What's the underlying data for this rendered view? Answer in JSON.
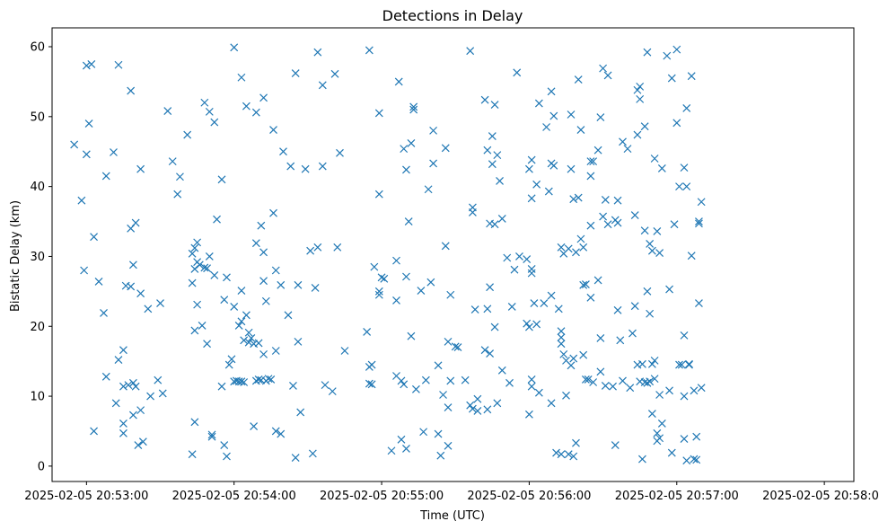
{
  "chart_data": {
    "type": "scatter",
    "title": "Detections in Delay",
    "xlabel": "Time (UTC)",
    "ylabel": "Bistatic Delay (km)",
    "marker": "x",
    "color": "#1f77b4",
    "xlim_seconds": [
      -14,
      312
    ],
    "ylim": [
      -2.2,
      62.7
    ],
    "x_ticks": [
      {
        "t": 0,
        "label": "2025-02-05 20:53:00"
      },
      {
        "t": 60,
        "label": "2025-02-05 20:54:00"
      },
      {
        "t": 120,
        "label": "2025-02-05 20:55:00"
      },
      {
        "t": 180,
        "label": "2025-02-05 20:56:00"
      },
      {
        "t": 240,
        "label": "2025-02-05 20:57:00"
      },
      {
        "t": 300,
        "label": "2025-02-05 20:58:00"
      }
    ],
    "y_ticks": [
      0,
      10,
      20,
      30,
      40,
      50,
      60
    ],
    "points_note": "x = seconds after 2025-02-05 20:53:00 UTC",
    "points": [
      [
        -5,
        46
      ],
      [
        -2,
        38
      ],
      [
        -1,
        28
      ],
      [
        0,
        57.3
      ],
      [
        0,
        44.6
      ],
      [
        1,
        49
      ],
      [
        2,
        57.5
      ],
      [
        3,
        32.8
      ],
      [
        3,
        5
      ],
      [
        5,
        26.4
      ],
      [
        7,
        21.9
      ],
      [
        8,
        12.8
      ],
      [
        8,
        41.5
      ],
      [
        11,
        44.9
      ],
      [
        12,
        9
      ],
      [
        13,
        57.4
      ],
      [
        13,
        15.2
      ],
      [
        15,
        16.6
      ],
      [
        15,
        11.4
      ],
      [
        15,
        6.1
      ],
      [
        15,
        4.7
      ],
      [
        16,
        25.8
      ],
      [
        17,
        11.6
      ],
      [
        18,
        53.7
      ],
      [
        18,
        25.7
      ],
      [
        18,
        34
      ],
      [
        19,
        11.9
      ],
      [
        19,
        7.3
      ],
      [
        19,
        28.8
      ],
      [
        20,
        34.8
      ],
      [
        20,
        11.4
      ],
      [
        21,
        3
      ],
      [
        22,
        8
      ],
      [
        22,
        42.5
      ],
      [
        22,
        24.7
      ],
      [
        23,
        3.5
      ],
      [
        25,
        22.5
      ],
      [
        26,
        10
      ],
      [
        29,
        12.3
      ],
      [
        30,
        23.3
      ],
      [
        31,
        10.4
      ],
      [
        33,
        50.8
      ],
      [
        35,
        43.6
      ],
      [
        37,
        38.9
      ],
      [
        38,
        41.4
      ],
      [
        41,
        47.4
      ],
      [
        43,
        1.7
      ],
      [
        43,
        26.2
      ],
      [
        43,
        30.4
      ],
      [
        44,
        19.4
      ],
      [
        44,
        28.2
      ],
      [
        44,
        6.3
      ],
      [
        44,
        31.2
      ],
      [
        45,
        23.1
      ],
      [
        45,
        32
      ],
      [
        45,
        29.2
      ],
      [
        46,
        28.8
      ],
      [
        47,
        20.1
      ],
      [
        48,
        52
      ],
      [
        48,
        28.4
      ],
      [
        49,
        28.3
      ],
      [
        49,
        17.5
      ],
      [
        50,
        50.7
      ],
      [
        50,
        30
      ],
      [
        51,
        4.5
      ],
      [
        51,
        4.2
      ],
      [
        52,
        27.3
      ],
      [
        52,
        49.2
      ],
      [
        53,
        35.3
      ],
      [
        55,
        41
      ],
      [
        55,
        11.4
      ],
      [
        56,
        23.8
      ],
      [
        56,
        3
      ],
      [
        57,
        27
      ],
      [
        57,
        1.4
      ],
      [
        58,
        14.5
      ],
      [
        59,
        15.3
      ],
      [
        60,
        22.8
      ],
      [
        60,
        12.1
      ],
      [
        60,
        59.9
      ],
      [
        61,
        12.2
      ],
      [
        62,
        12.1
      ],
      [
        62,
        20.1
      ],
      [
        63,
        12.1
      ],
      [
        63,
        20.7
      ],
      [
        63,
        55.6
      ],
      [
        63,
        25.1
      ],
      [
        64,
        18
      ],
      [
        64,
        12
      ],
      [
        65,
        21.6
      ],
      [
        65,
        51.5
      ],
      [
        66,
        19.1
      ],
      [
        66,
        17.7
      ],
      [
        67,
        18.3
      ],
      [
        68,
        17.5
      ],
      [
        68,
        5.7
      ],
      [
        69,
        12.2
      ],
      [
        69,
        31.9
      ],
      [
        69,
        50.6
      ],
      [
        70,
        17.6
      ],
      [
        70,
        12.4
      ],
      [
        71,
        12.3
      ],
      [
        71,
        34.4
      ],
      [
        72,
        16
      ],
      [
        72,
        26.5
      ],
      [
        72,
        52.7
      ],
      [
        72,
        30.6
      ],
      [
        73,
        23.6
      ],
      [
        73,
        12.2
      ],
      [
        74,
        12.5
      ],
      [
        75,
        12.4
      ],
      [
        76,
        48.1
      ],
      [
        76,
        36.2
      ],
      [
        77,
        5
      ],
      [
        77,
        16.5
      ],
      [
        77,
        28
      ],
      [
        79,
        4.6
      ],
      [
        79,
        25.9
      ],
      [
        80,
        45
      ],
      [
        82,
        21.6
      ],
      [
        83,
        42.9
      ],
      [
        84,
        11.5
      ],
      [
        85,
        1.2
      ],
      [
        85,
        56.2
      ],
      [
        86,
        25.9
      ],
      [
        86,
        17.8
      ],
      [
        87,
        7.7
      ],
      [
        89,
        42.5
      ],
      [
        91,
        30.8
      ],
      [
        92,
        1.8
      ],
      [
        93,
        25.5
      ],
      [
        94,
        59.2
      ],
      [
        94,
        31.3
      ],
      [
        96,
        54.5
      ],
      [
        96,
        42.9
      ],
      [
        97,
        11.6
      ],
      [
        100,
        10.7
      ],
      [
        101,
        56.1
      ],
      [
        102,
        31.3
      ],
      [
        103,
        44.8
      ],
      [
        105,
        16.5
      ],
      [
        114,
        19.2
      ],
      [
        115,
        59.5
      ],
      [
        115,
        11.8
      ],
      [
        115,
        14.2
      ],
      [
        116,
        14.5
      ],
      [
        116,
        11.7
      ],
      [
        117,
        28.5
      ],
      [
        119,
        50.5
      ],
      [
        119,
        38.9
      ],
      [
        119,
        25
      ],
      [
        119,
        24.5
      ],
      [
        120,
        27
      ],
      [
        121,
        26.8
      ],
      [
        124,
        2.2
      ],
      [
        126,
        12.9
      ],
      [
        126,
        29.4
      ],
      [
        126,
        23.7
      ],
      [
        127,
        55
      ],
      [
        128,
        12.2
      ],
      [
        128,
        3.8
      ],
      [
        129,
        45.4
      ],
      [
        129,
        11.7
      ],
      [
        130,
        42.4
      ],
      [
        130,
        2.5
      ],
      [
        130,
        27.1
      ],
      [
        131,
        35
      ],
      [
        132,
        46.2
      ],
      [
        132,
        18.6
      ],
      [
        133,
        51
      ],
      [
        133,
        51.4
      ],
      [
        134,
        11
      ],
      [
        136,
        25.1
      ],
      [
        137,
        4.9
      ],
      [
        138,
        12.3
      ],
      [
        139,
        39.6
      ],
      [
        140,
        26.3
      ],
      [
        141,
        43.3
      ],
      [
        141,
        48
      ],
      [
        143,
        14.4
      ],
      [
        143,
        4.6
      ],
      [
        144,
        1.5
      ],
      [
        145,
        10.2
      ],
      [
        146,
        45.5
      ],
      [
        146,
        31.5
      ],
      [
        147,
        17.8
      ],
      [
        147,
        8.4
      ],
      [
        147,
        2.9
      ],
      [
        148,
        12.2
      ],
      [
        148,
        24.5
      ],
      [
        150,
        17.1
      ],
      [
        151,
        17
      ],
      [
        154,
        12.3
      ],
      [
        156,
        59.4
      ],
      [
        156,
        8.7
      ],
      [
        157,
        37
      ],
      [
        157,
        36.3
      ],
      [
        157,
        8.2
      ],
      [
        158,
        22.4
      ],
      [
        159,
        9.6
      ],
      [
        159,
        7.9
      ],
      [
        162,
        16.6
      ],
      [
        162,
        52.4
      ],
      [
        163,
        45.2
      ],
      [
        163,
        8.1
      ],
      [
        163,
        22.5
      ],
      [
        164,
        34.7
      ],
      [
        164,
        25.6
      ],
      [
        164,
        16.1
      ],
      [
        165,
        43.2
      ],
      [
        165,
        47.2
      ],
      [
        166,
        19.9
      ],
      [
        166,
        51.7
      ],
      [
        166,
        34.6
      ],
      [
        167,
        44.5
      ],
      [
        167,
        9
      ],
      [
        168,
        40.8
      ],
      [
        169,
        13.7
      ],
      [
        169,
        35.4
      ],
      [
        171,
        29.8
      ],
      [
        172,
        11.9
      ],
      [
        173,
        22.8
      ],
      [
        174,
        28.1
      ],
      [
        175,
        56.3
      ],
      [
        176,
        30
      ],
      [
        179,
        20.4
      ],
      [
        179,
        29.6
      ],
      [
        180,
        7.4
      ],
      [
        180,
        19.9
      ],
      [
        180,
        42.5
      ],
      [
        181,
        12.4
      ],
      [
        181,
        11.4
      ],
      [
        181,
        27.6
      ],
      [
        181,
        28.2
      ],
      [
        181,
        43.8
      ],
      [
        181,
        38.3
      ],
      [
        182,
        23.3
      ],
      [
        183,
        20.3
      ],
      [
        183,
        40.3
      ],
      [
        184,
        51.9
      ],
      [
        184,
        10.5
      ],
      [
        186,
        23.3
      ],
      [
        187,
        48.5
      ],
      [
        188,
        39.3
      ],
      [
        189,
        43.3
      ],
      [
        189,
        9
      ],
      [
        189,
        24.4
      ],
      [
        189,
        53.6
      ],
      [
        190,
        43
      ],
      [
        190,
        50.1
      ],
      [
        191,
        1.9
      ],
      [
        192,
        22.5
      ],
      [
        193,
        17.5
      ],
      [
        193,
        31.3
      ],
      [
        193,
        1.7
      ],
      [
        193,
        18.4
      ],
      [
        193,
        19.3
      ],
      [
        194,
        30.4
      ],
      [
        194,
        16
      ],
      [
        195,
        10.1
      ],
      [
        195,
        15.1
      ],
      [
        196,
        31.1
      ],
      [
        196,
        1.7
      ],
      [
        197,
        14.4
      ],
      [
        197,
        42.5
      ],
      [
        197,
        50.3
      ],
      [
        198,
        1.4
      ],
      [
        198,
        15.4
      ],
      [
        198,
        38.2
      ],
      [
        199,
        30.6
      ],
      [
        199,
        3.3
      ],
      [
        200,
        55.3
      ],
      [
        200,
        38.4
      ],
      [
        201,
        48.1
      ],
      [
        201,
        32.5
      ],
      [
        202,
        25.9
      ],
      [
        202,
        15.9
      ],
      [
        202,
        31.3
      ],
      [
        203,
        12.4
      ],
      [
        203,
        26
      ],
      [
        204,
        12.4
      ],
      [
        205,
        43.6
      ],
      [
        205,
        41.5
      ],
      [
        205,
        34.4
      ],
      [
        205,
        24.1
      ],
      [
        206,
        12
      ],
      [
        206,
        43.6
      ],
      [
        208,
        45.2
      ],
      [
        208,
        26.6
      ],
      [
        209,
        49.9
      ],
      [
        209,
        18.3
      ],
      [
        209,
        13.5
      ],
      [
        210,
        56.9
      ],
      [
        210,
        35.7
      ],
      [
        211,
        38.1
      ],
      [
        211,
        11.5
      ],
      [
        212,
        34.6
      ],
      [
        212,
        55.9
      ],
      [
        214,
        11.4
      ],
      [
        215,
        35.2
      ],
      [
        215,
        3
      ],
      [
        216,
        34.8
      ],
      [
        216,
        22.3
      ],
      [
        216,
        38
      ],
      [
        217,
        18
      ],
      [
        218,
        46.4
      ],
      [
        218,
        12.2
      ],
      [
        220,
        45.4
      ],
      [
        221,
        11.2
      ],
      [
        222,
        19
      ],
      [
        223,
        22.9
      ],
      [
        223,
        35.9
      ],
      [
        224,
        53.8
      ],
      [
        224,
        14.5
      ],
      [
        224,
        47.4
      ],
      [
        225,
        12.1
      ],
      [
        225,
        54.3
      ],
      [
        225,
        52.5
      ],
      [
        226,
        1
      ],
      [
        226,
        14.6
      ],
      [
        227,
        48.6
      ],
      [
        227,
        12
      ],
      [
        227,
        33.7
      ],
      [
        228,
        25
      ],
      [
        228,
        11.9
      ],
      [
        228,
        59.2
      ],
      [
        229,
        21.8
      ],
      [
        229,
        12.1
      ],
      [
        229,
        31.8
      ],
      [
        230,
        14.6
      ],
      [
        230,
        30.8
      ],
      [
        230,
        7.5
      ],
      [
        231,
        12.5
      ],
      [
        231,
        44
      ],
      [
        231,
        15.1
      ],
      [
        232,
        33.6
      ],
      [
        232,
        3.6
      ],
      [
        232,
        4.7
      ],
      [
        233,
        4
      ],
      [
        233,
        30.5
      ],
      [
        233,
        10.2
      ],
      [
        234,
        6.1
      ],
      [
        234,
        42.6
      ],
      [
        236,
        58.7
      ],
      [
        237,
        25.3
      ],
      [
        237,
        10.8
      ],
      [
        238,
        55.5
      ],
      [
        238,
        1.9
      ],
      [
        239,
        34.6
      ],
      [
        240,
        49.1
      ],
      [
        240,
        59.6
      ],
      [
        241,
        40
      ],
      [
        241,
        14.5
      ],
      [
        242,
        14.5
      ],
      [
        243,
        18.7
      ],
      [
        243,
        3.9
      ],
      [
        243,
        10
      ],
      [
        243,
        42.7
      ],
      [
        244,
        40
      ],
      [
        244,
        0.8
      ],
      [
        244,
        51.2
      ],
      [
        245,
        14.6
      ],
      [
        245,
        14.5
      ],
      [
        246,
        30.1
      ],
      [
        246,
        55.8
      ],
      [
        247,
        10.8
      ],
      [
        247,
        1
      ],
      [
        248,
        0.9
      ],
      [
        248,
        4.2
      ],
      [
        249,
        34.7
      ],
      [
        249,
        23.3
      ],
      [
        249,
        35
      ],
      [
        250,
        11.2
      ],
      [
        250,
        37.8
      ]
    ]
  }
}
